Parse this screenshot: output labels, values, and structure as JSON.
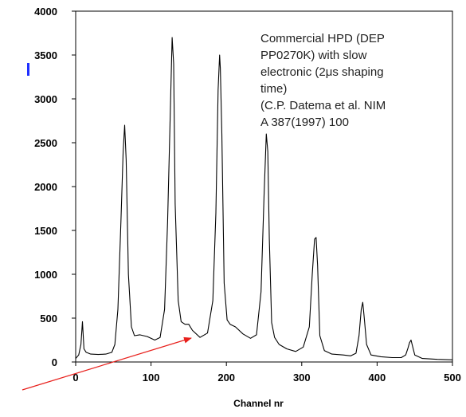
{
  "chart_data": {
    "type": "line",
    "title": "",
    "xlabel": "Channel nr",
    "ylabel": "",
    "xlim": [
      0,
      500
    ],
    "ylim": [
      0,
      4000
    ],
    "xticks": [
      0,
      100,
      200,
      300,
      400,
      500
    ],
    "yticks": [
      0,
      500,
      1000,
      1500,
      2000,
      2500,
      3000,
      3500,
      4000
    ],
    "xtick_labels": [
      "0",
      "100",
      "200",
      "300",
      "400",
      "500"
    ],
    "ytick_labels": [
      "0",
      "500",
      "1000",
      "1500",
      "2000",
      "2500",
      "3000",
      "3500",
      "4000"
    ],
    "grid": false,
    "legend": "none",
    "annotation": [
      "Commercial HPD (DEP",
      "PP0270K) with slow",
      "electronic (2μs shaping",
      "time)",
      "(C.P. Datema et al. NIM",
      "A 387(1997) 100"
    ],
    "arrow_color": "#e8201c",
    "line_color": "#000000",
    "series": [
      {
        "x": [
          0,
          4,
          7,
          9,
          11,
          14,
          20,
          30,
          40,
          48,
          52,
          56,
          60,
          63,
          65,
          67,
          70,
          74,
          78,
          85,
          95,
          105,
          112,
          118,
          122,
          126,
          128,
          130,
          132,
          136,
          140,
          145,
          150,
          155,
          165,
          175,
          182,
          186,
          189,
          191,
          192,
          194,
          197,
          201,
          205,
          212,
          222,
          232,
          240,
          246,
          250,
          253,
          255,
          257,
          260,
          264,
          270,
          280,
          292,
          302,
          310,
          314,
          317,
          319,
          321,
          324,
          330,
          340,
          355,
          365,
          372,
          376,
          379,
          381,
          383,
          386,
          392,
          405,
          420,
          432,
          438,
          441,
          443,
          445,
          447,
          450,
          460,
          480,
          500
        ],
        "y": [
          40,
          80,
          200,
          460,
          150,
          110,
          90,
          85,
          90,
          110,
          200,
          600,
          1600,
          2400,
          2700,
          2300,
          1000,
          400,
          300,
          310,
          290,
          250,
          280,
          600,
          1600,
          3000,
          3700,
          3400,
          1800,
          700,
          460,
          430,
          430,
          360,
          280,
          330,
          700,
          1700,
          3100,
          3500,
          3350,
          2600,
          900,
          480,
          430,
          400,
          320,
          270,
          310,
          800,
          1900,
          2600,
          2400,
          1400,
          450,
          280,
          200,
          150,
          120,
          170,
          400,
          1000,
          1400,
          1420,
          1100,
          300,
          130,
          90,
          80,
          70,
          100,
          300,
          600,
          680,
          500,
          200,
          80,
          60,
          50,
          50,
          80,
          160,
          220,
          250,
          180,
          80,
          40,
          30,
          25
        ]
      }
    ]
  }
}
